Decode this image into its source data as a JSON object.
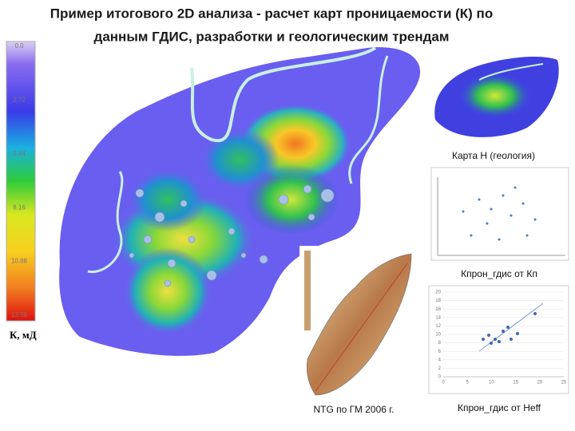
{
  "header": {
    "title": [
      "Пример итогового 2D анализа - расчет карт проницаемости (К) по",
      "данным ГДИС, разработки и геологическим трендам"
    ]
  },
  "colorbar": {
    "labels": [
      "0.0",
      "2.72",
      "5.44",
      "8.16",
      "10.88",
      "13.59"
    ],
    "unit": "К, мД"
  },
  "panels": [
    {
      "caption": "Карта Н (геология)"
    },
    {
      "caption": "Кпрон_гдис от Кп"
    },
    {
      "caption": "NTG по ГМ 2006 г."
    },
    {
      "caption": "Кпрон_гдис от Heff"
    }
  ],
  "heff_chart": {
    "yticks": [
      0,
      2,
      4,
      6,
      8,
      10,
      12,
      14,
      16,
      18,
      20
    ],
    "xticks": [
      0,
      5,
      10,
      15,
      20,
      25
    ]
  }
}
